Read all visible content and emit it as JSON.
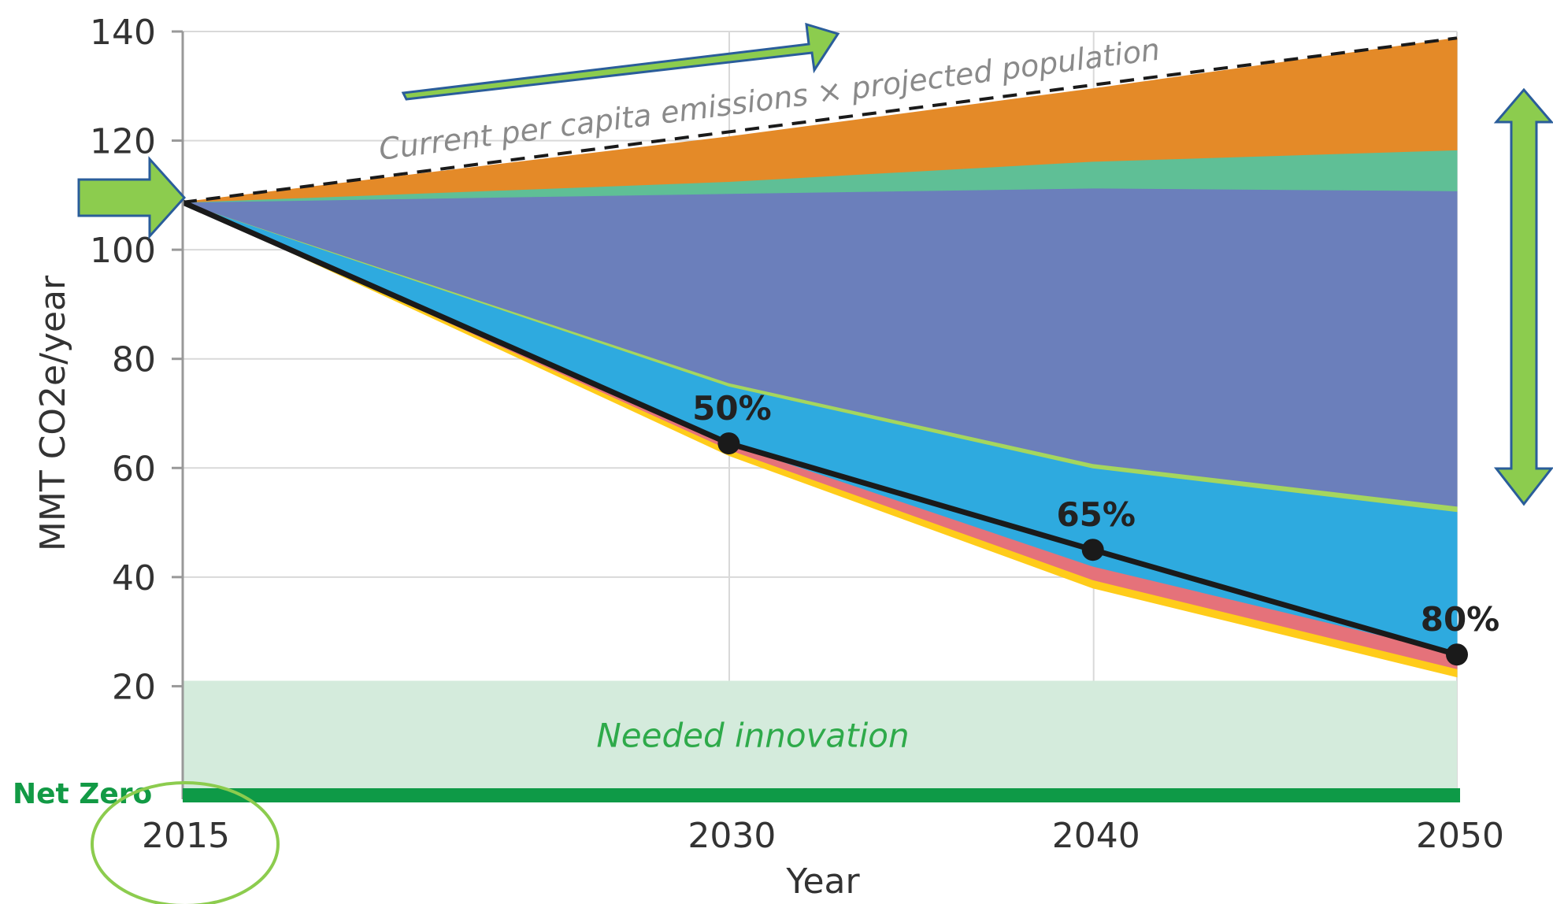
{
  "chart_data": {
    "type": "area",
    "xlabel": "Year",
    "ylabel": "MMT CO2e/year",
    "xlim": [
      2015,
      2050
    ],
    "ylim": [
      0,
      140
    ],
    "x_ticks": [
      2015,
      2030,
      2040,
      2050
    ],
    "y_ticks": [
      20,
      40,
      60,
      80,
      100,
      120,
      140
    ],
    "grid": true,
    "x": [
      2015,
      2030,
      2040,
      2050
    ],
    "bands": [
      {
        "color": "#ffcc1a",
        "lower": [
          108.7,
          62.3,
          38.0,
          21.7
        ],
        "upper": [
          108.7,
          63.4,
          39.5,
          23.2
        ]
      },
      {
        "color": "#e5727a",
        "lower": [
          108.7,
          63.4,
          39.5,
          23.2
        ],
        "upper": [
          108.7,
          64.5,
          42.0,
          26.0
        ]
      },
      {
        "color": "#2eaadf",
        "lower": [
          108.7,
          64.5,
          42.0,
          26.0
        ],
        "upper": [
          108.7,
          75.0,
          60.0,
          52.0
        ]
      },
      {
        "color": "#a5d65e",
        "lower": [
          108.7,
          75.0,
          60.0,
          52.0
        ],
        "upper": [
          108.7,
          75.6,
          60.8,
          53.0
        ]
      },
      {
        "color": "#6b7fbb",
        "lower": [
          108.7,
          75.6,
          60.8,
          53.0
        ],
        "upper": [
          108.7,
          110.3,
          111.3,
          110.8
        ]
      },
      {
        "color": "#5fbf96",
        "lower": [
          108.7,
          110.3,
          111.3,
          110.8
        ],
        "upper": [
          108.7,
          112.5,
          116.2,
          118.3
        ]
      },
      {
        "color": "#e48a28",
        "lower": [
          108.7,
          112.5,
          116.2,
          118.3
        ],
        "upper": [
          108.7,
          120.7,
          129.5,
          138.8
        ]
      }
    ],
    "target_line": {
      "x": [
        2015,
        2030,
        2040,
        2050
      ],
      "y": [
        108.7,
        64.5,
        45.0,
        25.8
      ]
    },
    "target_points": [
      {
        "x": 2030,
        "y": 64.5,
        "label": "50%"
      },
      {
        "x": 2040,
        "y": 45.0,
        "label": "65%"
      },
      {
        "x": 2050,
        "y": 25.8,
        "label": "80%"
      }
    ],
    "reference_line": {
      "label": "Current per capita emissions × projected population",
      "x": [
        2015,
        2050
      ],
      "y": [
        108.7,
        138.8
      ]
    },
    "innovation_band": {
      "label": "Needed innovation",
      "lower": 0,
      "upper": 21
    },
    "net_zero": {
      "label": "Net Zero",
      "y": 0
    },
    "colors": {
      "target_line": "#1a1a1a",
      "innovation_fill": "#d4ebdc",
      "net_zero_bar": "#0e9a47",
      "arrows": "#8ccc4e",
      "arrow_outline": "#2a5d9a",
      "circle": "#8ccc4e"
    }
  }
}
